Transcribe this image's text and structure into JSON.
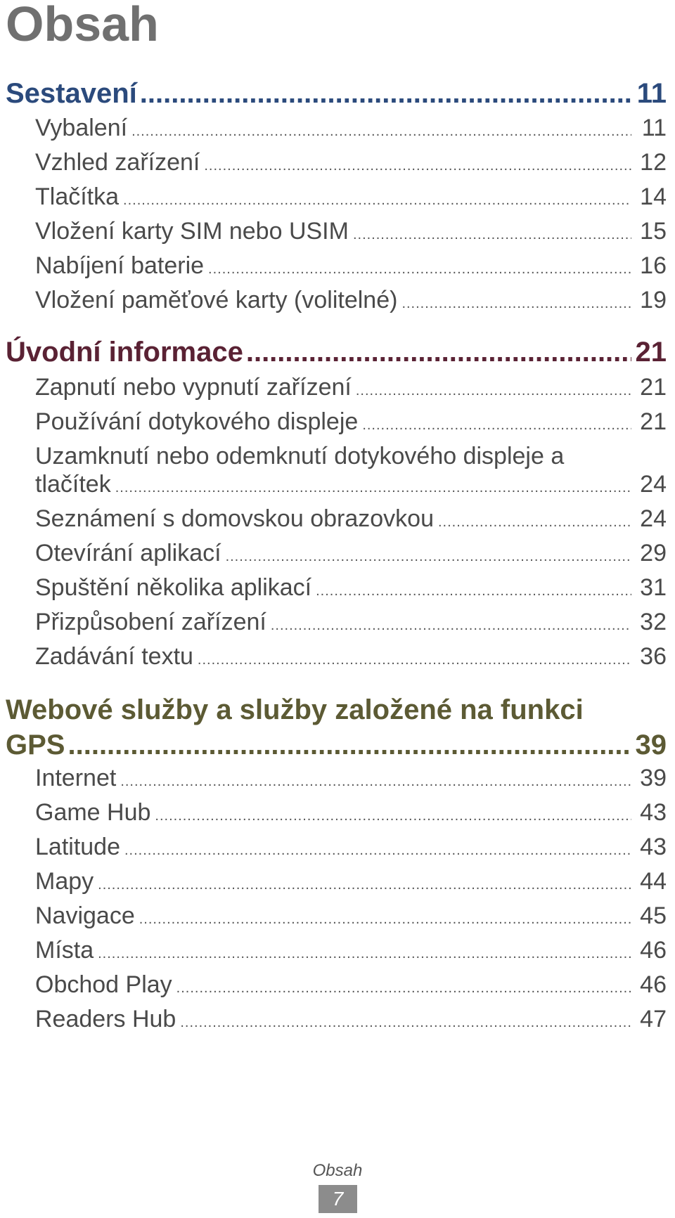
{
  "page_title": "Obsah",
  "colors": {
    "sestaveni": "#2b4a7c",
    "uvodni": "#5a2234",
    "webove": "#5c5a34",
    "title": "#707070"
  },
  "sections": [
    {
      "label": "Sestavení",
      "page": "11",
      "entries": [
        {
          "label": "Vybalení",
          "page": "11"
        },
        {
          "label": "Vzhled zařízení",
          "page": "12"
        },
        {
          "label": "Tlačítka",
          "page": "14"
        },
        {
          "label": "Vložení karty SIM nebo USIM",
          "page": "15"
        },
        {
          "label": "Nabíjení baterie",
          "page": "16"
        },
        {
          "label": "Vložení paměťové karty (volitelné)",
          "page": "19"
        }
      ]
    },
    {
      "label": "Úvodní informace",
      "page": "21",
      "entries": [
        {
          "label": "Zapnutí nebo vypnutí zařízení",
          "page": "21"
        },
        {
          "label": "Používání dotykového displeje",
          "page": "21"
        },
        {
          "label_line1": "Uzamknutí nebo odemknutí dotykového displeje a",
          "label": "tlačítek",
          "page": "24"
        },
        {
          "label": "Seznámení s domovskou obrazovkou",
          "page": "24"
        },
        {
          "label": "Otevírání aplikací",
          "page": "29"
        },
        {
          "label": "Spuštění několika aplikací",
          "page": "31"
        },
        {
          "label": "Přizpůsobení zařízení",
          "page": "32"
        },
        {
          "label": "Zadávání textu",
          "page": "36"
        }
      ]
    },
    {
      "label_line1": "Webové služby a služby založené na funkci",
      "label": "GPS",
      "page": "39",
      "entries": [
        {
          "label": "Internet",
          "page": "39"
        },
        {
          "label": "Game Hub",
          "page": "43"
        },
        {
          "label": "Latitude",
          "page": "43"
        },
        {
          "label": "Mapy",
          "page": "44"
        },
        {
          "label": "Navigace",
          "page": "45"
        },
        {
          "label": "Místa",
          "page": "46"
        },
        {
          "label": "Obchod Play",
          "page": "46"
        },
        {
          "label": "Readers Hub",
          "page": "47"
        }
      ]
    }
  ],
  "footer": {
    "section": "Obsah",
    "page_number": "7"
  }
}
